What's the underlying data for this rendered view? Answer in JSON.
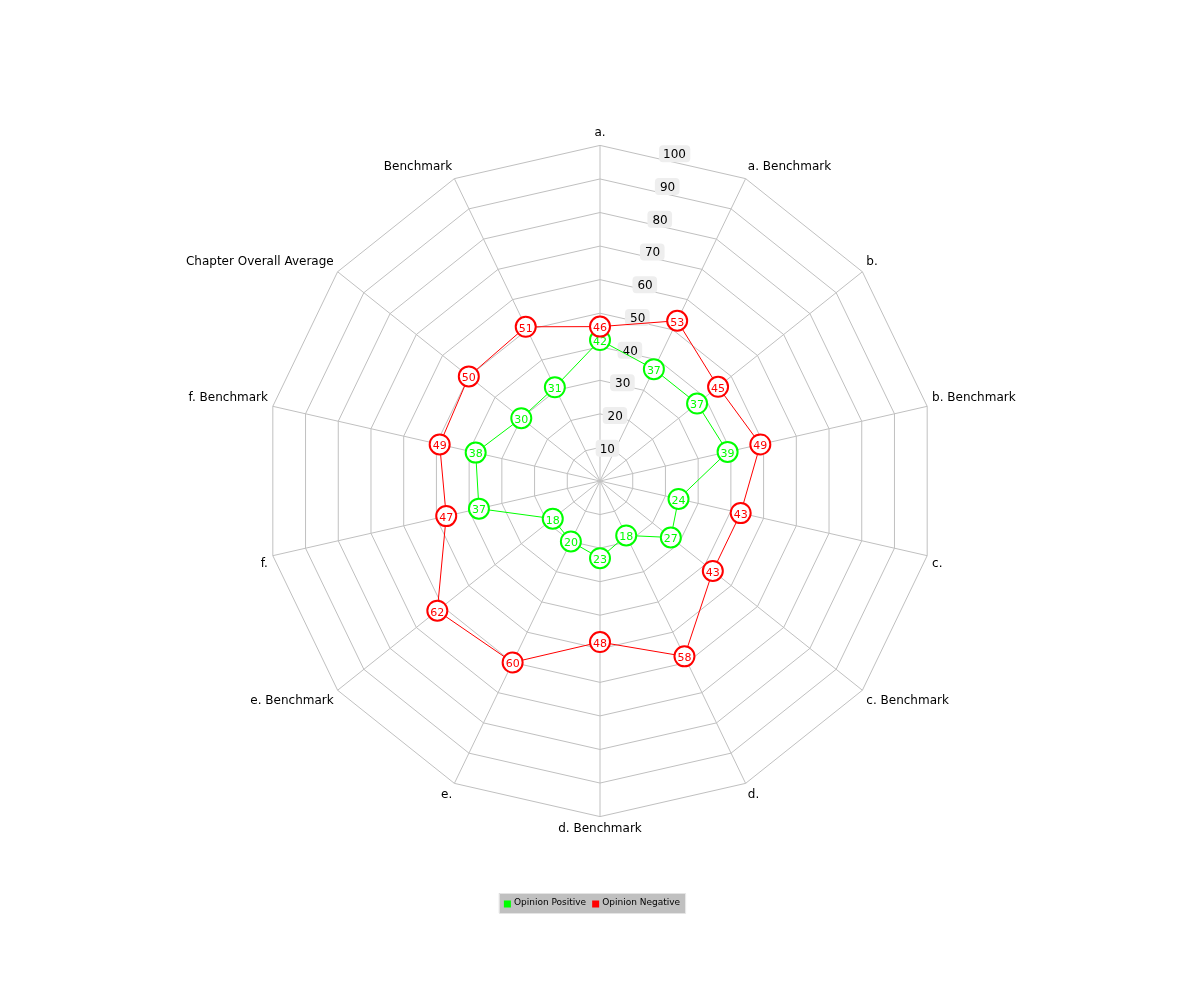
{
  "chart_data": {
    "type": "radar",
    "categories": [
      "a.",
      "a. Benchmark",
      "b.",
      "b. Benchmark",
      "c.",
      "c. Benchmark",
      "d.",
      "d. Benchmark",
      "e.",
      "e. Benchmark",
      "f.",
      "f. Benchmark",
      "Chapter Overall Average",
      "Benchmark"
    ],
    "series": [
      {
        "name": "Opinion Positive",
        "color": "#00ff00",
        "values": [
          42,
          37,
          37,
          39,
          24,
          27,
          18,
          23,
          20,
          18,
          37,
          38,
          30,
          31
        ]
      },
      {
        "name": "Opinion Negative",
        "color": "#ff0000",
        "values": [
          46,
          53,
          45,
          49,
          43,
          43,
          58,
          48,
          60,
          62,
          47,
          49,
          50,
          51
        ]
      }
    ],
    "ylim": [
      0,
      100
    ],
    "yticks": [
      10,
      20,
      30,
      40,
      50,
      60,
      70,
      80,
      90,
      100
    ],
    "grid": true,
    "legend": "bottom",
    "marker": "circle",
    "line_style": "solid",
    "data_labels": true
  }
}
